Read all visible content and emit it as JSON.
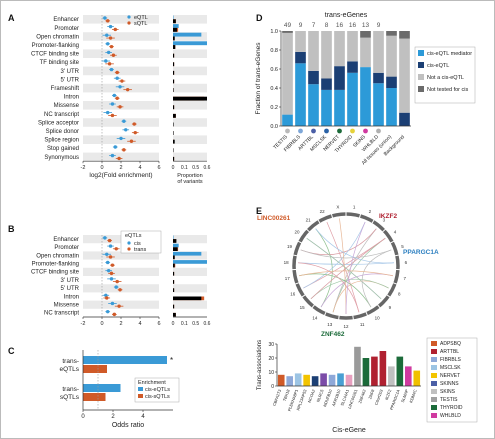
{
  "panel_labels": {
    "a": "A",
    "b": "B",
    "c": "C",
    "d": "D",
    "e": "E"
  },
  "colors": {
    "eqtl": "#3a9ad6",
    "sqtl": "#d05a28",
    "cis_med": "#2c9ad8",
    "cis_eqtl": "#1b3f74",
    "not_cis": "#c0c0c0",
    "not_tested": "#6b6b6b"
  },
  "chart_data": [
    {
      "id": "A",
      "type": "scatter",
      "categories": [
        "Enhancer",
        "Promoter",
        "Open chromatin",
        "Promoter-flanking",
        "CTCF binding site",
        "TF binding site",
        "3' UTR",
        "5' UTR",
        "Frameshift",
        "Intron",
        "Missense",
        "NC transcript",
        "Splice acceptor",
        "Splice donor",
        "Splice region",
        "Stop gained",
        "Synonymous"
      ],
      "series": [
        {
          "name": "eQTL",
          "values": [
            0.3,
            0.9,
            0.5,
            0.6,
            0.7,
            0.4,
            1.0,
            1.6,
            1.9,
            1.3,
            1.1,
            0.6,
            2.3,
            2.5,
            2.0,
            1.4,
            1.1
          ]
        },
        {
          "name": "sQTL",
          "values": [
            0.6,
            1.4,
            0.9,
            1.0,
            1.2,
            0.8,
            1.6,
            2.1,
            2.7,
            1.6,
            1.9,
            1.1,
            3.4,
            3.5,
            3.1,
            2.3,
            1.8
          ]
        }
      ],
      "xlabel": "log2(Fold enrichment)",
      "xticks": [
        "-2",
        "0",
        "2",
        "4",
        "6"
      ],
      "xlim": [
        -2,
        6
      ],
      "proportion": {
        "xlabel": "Proportion of variants",
        "xticks": [
          "0",
          "0.1",
          "0.5",
          "0.6"
        ],
        "eqtl": [
          0.05,
          0.09,
          0.03,
          0.04,
          0.02,
          0.02,
          0.02,
          0.02,
          0.01,
          0.55,
          0.02,
          0.05,
          0.005,
          0.005,
          0.02,
          0.005,
          0.02
        ],
        "sqtl": [
          0.05,
          0.07,
          0.03,
          0.04,
          0.02,
          0.02,
          0.02,
          0.02,
          0.01,
          0.6,
          0.02,
          0.05,
          0.01,
          0.01,
          0.03,
          0.005,
          0.02
        ]
      }
    },
    {
      "id": "B",
      "type": "scatter",
      "legend_title": "eQTLs",
      "categories": [
        "Enhancer",
        "Promoter",
        "Open chromatin",
        "Promoter-flanking",
        "CTCF binding site",
        "3' UTR",
        "5' UTR",
        "Intron",
        "Missense",
        "NC transcript"
      ],
      "series": [
        {
          "name": "cis",
          "values": [
            0.3,
            0.9,
            0.5,
            0.6,
            0.7,
            1.0,
            1.5,
            0.4,
            1.1,
            0.6
          ]
        },
        {
          "name": "trans",
          "values": [
            0.8,
            1.5,
            0.9,
            1.1,
            1.0,
            1.6,
            1.9,
            0.5,
            1.8,
            1.3
          ]
        }
      ],
      "xticks": [
        "-2",
        "0",
        "2",
        "4",
        "6"
      ],
      "xlim": [
        -2,
        6
      ],
      "proportion": {
        "xticks": [
          "0",
          "0.1",
          "0.5",
          "0.6"
        ],
        "cis": [
          0.05,
          0.09,
          0.03,
          0.04,
          0.02,
          0.02,
          0.02,
          0.55,
          0.02,
          0.05
        ],
        "trans": [
          0.06,
          0.08,
          0.03,
          0.03,
          0.02,
          0.02,
          0.02,
          0.5,
          0.02,
          0.05
        ]
      }
    },
    {
      "id": "C",
      "type": "bar",
      "categories": [
        "trans-eQTLs",
        "trans-sQTLs"
      ],
      "category_lines": [
        [
          "trans-",
          "eQTLs"
        ],
        [
          "trans-",
          "sQTLs"
        ]
      ],
      "series": [
        {
          "name": "cis-eQTLs",
          "values": [
            5.6,
            2.5
          ]
        },
        {
          "name": "cis-sQTLs",
          "values": [
            1.6,
            1.5
          ]
        }
      ],
      "xlabel": "Odds ratio",
      "xticks": [
        "0",
        "2",
        "4"
      ],
      "xlim": [
        0,
        6
      ],
      "legend_title": "Enrichment",
      "annotation": "*"
    },
    {
      "id": "D",
      "type": "bar",
      "stacked": true,
      "title": "trans-eGenes",
      "ylabel": "Fraction of trans-eGenes",
      "ylim": [
        0,
        1
      ],
      "yticks": [
        "0.0",
        "0.2",
        "0.4",
        "0.6",
        "0.8",
        "1.0"
      ],
      "categories": [
        "TESTIS",
        "FIBRBLS",
        "ARTTBL",
        "MSCLSK",
        "NERVET",
        "THYROID",
        "SKINS",
        "WHLBLD",
        "All tissues (union)",
        "Background"
      ],
      "counts": [
        "49",
        "9",
        "7",
        "8",
        "16",
        "16",
        "13",
        "9",
        "",
        ""
      ],
      "dot_colors": [
        "#b9b9b9",
        "#7ea7d8",
        "#4b5fa6",
        "#2a62a6",
        "#1c6b3a",
        "#e6d23a",
        "#d03aa0",
        "#b0b0b0",
        "",
        ""
      ],
      "series": [
        {
          "name": "cis-eQTL mediator",
          "values": [
            0.12,
            0.66,
            0.44,
            0.38,
            0.38,
            0.56,
            0.62,
            0.45,
            0.4,
            0.0
          ]
        },
        {
          "name": "cis-eQTL",
          "values": [
            0.0,
            0.12,
            0.14,
            0.12,
            0.25,
            0.12,
            0.0,
            0.11,
            0.12,
            0.14
          ]
        },
        {
          "name": "Not a cis-eQTL",
          "values": [
            0.86,
            0.22,
            0.42,
            0.5,
            0.37,
            0.32,
            0.31,
            0.44,
            0.43,
            0.78
          ]
        },
        {
          "name": "Not tested for cis",
          "values": [
            0.02,
            0.0,
            0.0,
            0.0,
            0.0,
            0.0,
            0.07,
            0.0,
            0.05,
            0.08
          ]
        }
      ],
      "legend": [
        "cis-eQTL mediator",
        "cis-eQTL",
        "Not a cis-eQTL",
        "Not tested for cis"
      ]
    },
    {
      "id": "E",
      "type": "bar",
      "circos_labels": [
        {
          "text": "LINC00261",
          "color": "#d05a28"
        },
        {
          "text": "IKZF2",
          "color": "#b02030"
        },
        {
          "text": "PPARGC1A",
          "color": "#2c7fc0"
        },
        {
          "text": "ZNF462",
          "color": "#1c6b3a"
        }
      ],
      "chromosomes": [
        "1",
        "2",
        "3",
        "4",
        "5",
        "6",
        "7",
        "8",
        "9",
        "10",
        "11",
        "12",
        "13",
        "14",
        "15",
        "16",
        "17",
        "18",
        "19",
        "20",
        "21",
        "22",
        "X"
      ],
      "ylabel": "Trans-associations",
      "xlabel": "Cis-eGene",
      "ylim": [
        0,
        30
      ],
      "yticks": [
        "0",
        "10",
        "20",
        "30"
      ],
      "categories": [
        "CBFA2T3",
        "TBX18",
        "PLEKHA8P1",
        "RPL23AP53",
        "NCOA2",
        "NLRC5",
        "NDUFB10",
        "AKR1B10",
        "SLC44A1",
        "LINC00261",
        "ZNF462",
        "ZNF8",
        "C6orf203",
        "IKZF2",
        "PPARGC1A",
        "SLMAP",
        "KDM4C"
      ],
      "values": [
        8,
        7,
        9,
        8,
        7,
        9,
        8,
        9,
        8,
        28,
        20,
        21,
        25,
        14,
        21,
        14,
        11
      ],
      "bar_colors": [
        "#d05a28",
        "#8ea8d8",
        "#9cc4e4",
        "#f3c400",
        "#1b3f74",
        "#7b4ca8",
        "#8ea8d8",
        "#4a9fd3",
        "#e8a0c0",
        "#9a9a9a",
        "#1c6b3a",
        "#b02030",
        "#b02030",
        "#c0c0c0",
        "#1c6b3a",
        "#d03aa0",
        "#f0c000"
      ],
      "legend": [
        {
          "label": "ADPSBQ",
          "color": "#d05a28"
        },
        {
          "label": "ARTTBL",
          "color": "#b02030"
        },
        {
          "label": "FIBRBLS",
          "color": "#8ea8d8"
        },
        {
          "label": "MSCLSK",
          "color": "#9cc4e4"
        },
        {
          "label": "NERVET",
          "color": "#f3c400"
        },
        {
          "label": "SKINNS",
          "color": "#4b5fa6"
        },
        {
          "label": "SKINS",
          "color": "#c0c0c0"
        },
        {
          "label": "TESTIS",
          "color": "#a0a0a0"
        },
        {
          "label": "THYROID",
          "color": "#1c6b3a"
        },
        {
          "label": "WHLBLD",
          "color": "#d03aa0"
        }
      ]
    }
  ]
}
